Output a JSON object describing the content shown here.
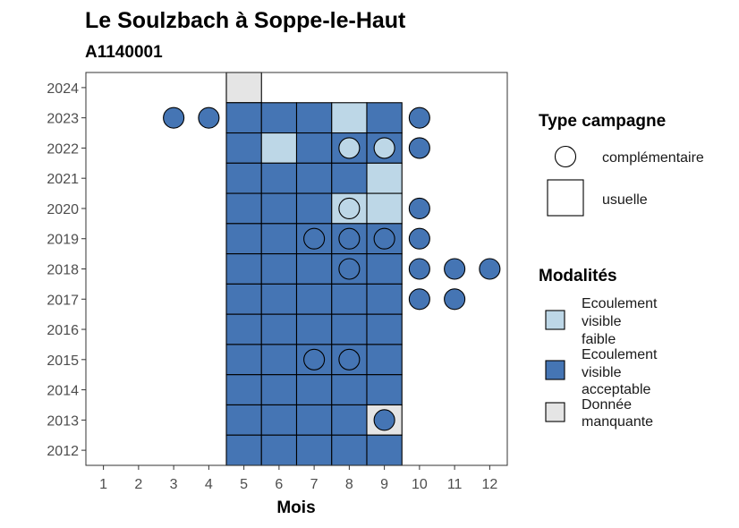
{
  "chart_data": {
    "type": "heatmap",
    "title": "Le Soulzbach à Soppe-le-Haut",
    "subtitle": "A1140001",
    "xlabel": "Mois",
    "ylabel": "",
    "x_ticks": [
      "1",
      "2",
      "3",
      "4",
      "5",
      "6",
      "7",
      "8",
      "9",
      "10",
      "11",
      "12"
    ],
    "y_ticks": [
      "2012",
      "2013",
      "2014",
      "2015",
      "2016",
      "2017",
      "2018",
      "2019",
      "2020",
      "2021",
      "2022",
      "2023",
      "2024"
    ],
    "xlim": [
      0.5,
      12.5
    ],
    "ylim": [
      2011.5,
      2024.5
    ],
    "grid": false,
    "legend_position": "right",
    "colors": {
      "faible": "#bdd7e7",
      "acceptable": "#4575b4",
      "manquante": "#e5e5e5",
      "stroke": "#000000",
      "panel_border": "#333333"
    },
    "legend_type": {
      "title": "Type campagne",
      "items": [
        {
          "key": "complementaire",
          "label": "complémentaire",
          "shape": "circle"
        },
        {
          "key": "usuelle",
          "label": "usuelle",
          "shape": "square"
        }
      ]
    },
    "legend_modalites": {
      "title": "Modalités",
      "items": [
        {
          "key": "faible",
          "lines": [
            "Ecoulement",
            "visible",
            "faible"
          ]
        },
        {
          "key": "acceptable",
          "lines": [
            "Ecoulement",
            "visible",
            "acceptable"
          ]
        },
        {
          "key": "manquante",
          "lines": [
            "Donnée",
            "manquante"
          ]
        }
      ]
    },
    "points": [
      {
        "year": 2024,
        "month": 5,
        "type": "usuelle",
        "modalite": "manquante"
      },
      {
        "year": 2023,
        "month": 3,
        "type": "complementaire",
        "modalite": "acceptable"
      },
      {
        "year": 2023,
        "month": 4,
        "type": "complementaire",
        "modalite": "acceptable"
      },
      {
        "year": 2023,
        "month": 5,
        "type": "usuelle",
        "modalite": "acceptable"
      },
      {
        "year": 2023,
        "month": 6,
        "type": "usuelle",
        "modalite": "acceptable"
      },
      {
        "year": 2023,
        "month": 7,
        "type": "usuelle",
        "modalite": "acceptable"
      },
      {
        "year": 2023,
        "month": 8,
        "type": "usuelle",
        "modalite": "faible"
      },
      {
        "year": 2023,
        "month": 9,
        "type": "usuelle",
        "modalite": "acceptable"
      },
      {
        "year": 2023,
        "month": 10,
        "type": "complementaire",
        "modalite": "acceptable"
      },
      {
        "year": 2022,
        "month": 5,
        "type": "usuelle",
        "modalite": "acceptable"
      },
      {
        "year": 2022,
        "month": 6,
        "type": "usuelle",
        "modalite": "faible"
      },
      {
        "year": 2022,
        "month": 7,
        "type": "usuelle",
        "modalite": "acceptable"
      },
      {
        "year": 2022,
        "month": 8,
        "type": "usuelle",
        "modalite": "acceptable"
      },
      {
        "year": 2022,
        "month": 9,
        "type": "usuelle",
        "modalite": "acceptable"
      },
      {
        "year": 2022,
        "month": 8,
        "type": "complementaire",
        "modalite": "faible"
      },
      {
        "year": 2022,
        "month": 9,
        "type": "complementaire",
        "modalite": "faible"
      },
      {
        "year": 2022,
        "month": 10,
        "type": "complementaire",
        "modalite": "acceptable"
      },
      {
        "year": 2021,
        "month": 5,
        "type": "usuelle",
        "modalite": "acceptable"
      },
      {
        "year": 2021,
        "month": 6,
        "type": "usuelle",
        "modalite": "acceptable"
      },
      {
        "year": 2021,
        "month": 7,
        "type": "usuelle",
        "modalite": "acceptable"
      },
      {
        "year": 2021,
        "month": 8,
        "type": "usuelle",
        "modalite": "acceptable"
      },
      {
        "year": 2021,
        "month": 9,
        "type": "usuelle",
        "modalite": "faible"
      },
      {
        "year": 2020,
        "month": 5,
        "type": "usuelle",
        "modalite": "acceptable"
      },
      {
        "year": 2020,
        "month": 6,
        "type": "usuelle",
        "modalite": "acceptable"
      },
      {
        "year": 2020,
        "month": 7,
        "type": "usuelle",
        "modalite": "acceptable"
      },
      {
        "year": 2020,
        "month": 8,
        "type": "usuelle",
        "modalite": "faible"
      },
      {
        "year": 2020,
        "month": 9,
        "type": "usuelle",
        "modalite": "faible"
      },
      {
        "year": 2020,
        "month": 8,
        "type": "complementaire",
        "modalite": "faible"
      },
      {
        "year": 2020,
        "month": 10,
        "type": "complementaire",
        "modalite": "acceptable"
      },
      {
        "year": 2019,
        "month": 5,
        "type": "usuelle",
        "modalite": "acceptable"
      },
      {
        "year": 2019,
        "month": 6,
        "type": "usuelle",
        "modalite": "acceptable"
      },
      {
        "year": 2019,
        "month": 7,
        "type": "usuelle",
        "modalite": "acceptable"
      },
      {
        "year": 2019,
        "month": 8,
        "type": "usuelle",
        "modalite": "acceptable"
      },
      {
        "year": 2019,
        "month": 9,
        "type": "usuelle",
        "modalite": "acceptable"
      },
      {
        "year": 2019,
        "month": 7,
        "type": "complementaire",
        "modalite": "acceptable"
      },
      {
        "year": 2019,
        "month": 8,
        "type": "complementaire",
        "modalite": "acceptable"
      },
      {
        "year": 2019,
        "month": 9,
        "type": "complementaire",
        "modalite": "acceptable"
      },
      {
        "year": 2019,
        "month": 10,
        "type": "complementaire",
        "modalite": "acceptable"
      },
      {
        "year": 2018,
        "month": 5,
        "type": "usuelle",
        "modalite": "acceptable"
      },
      {
        "year": 2018,
        "month": 6,
        "type": "usuelle",
        "modalite": "acceptable"
      },
      {
        "year": 2018,
        "month": 7,
        "type": "usuelle",
        "modalite": "acceptable"
      },
      {
        "year": 2018,
        "month": 8,
        "type": "usuelle",
        "modalite": "acceptable"
      },
      {
        "year": 2018,
        "month": 9,
        "type": "usuelle",
        "modalite": "acceptable"
      },
      {
        "year": 2018,
        "month": 8,
        "type": "complementaire",
        "modalite": "acceptable"
      },
      {
        "year": 2018,
        "month": 10,
        "type": "complementaire",
        "modalite": "acceptable"
      },
      {
        "year": 2018,
        "month": 11,
        "type": "complementaire",
        "modalite": "acceptable"
      },
      {
        "year": 2018,
        "month": 12,
        "type": "complementaire",
        "modalite": "acceptable"
      },
      {
        "year": 2017,
        "month": 5,
        "type": "usuelle",
        "modalite": "acceptable"
      },
      {
        "year": 2017,
        "month": 6,
        "type": "usuelle",
        "modalite": "acceptable"
      },
      {
        "year": 2017,
        "month": 7,
        "type": "usuelle",
        "modalite": "acceptable"
      },
      {
        "year": 2017,
        "month": 8,
        "type": "usuelle",
        "modalite": "acceptable"
      },
      {
        "year": 2017,
        "month": 9,
        "type": "usuelle",
        "modalite": "acceptable"
      },
      {
        "year": 2017,
        "month": 10,
        "type": "complementaire",
        "modalite": "acceptable"
      },
      {
        "year": 2017,
        "month": 11,
        "type": "complementaire",
        "modalite": "acceptable"
      },
      {
        "year": 2016,
        "month": 5,
        "type": "usuelle",
        "modalite": "acceptable"
      },
      {
        "year": 2016,
        "month": 6,
        "type": "usuelle",
        "modalite": "acceptable"
      },
      {
        "year": 2016,
        "month": 7,
        "type": "usuelle",
        "modalite": "acceptable"
      },
      {
        "year": 2016,
        "month": 8,
        "type": "usuelle",
        "modalite": "acceptable"
      },
      {
        "year": 2016,
        "month": 9,
        "type": "usuelle",
        "modalite": "acceptable"
      },
      {
        "year": 2015,
        "month": 5,
        "type": "usuelle",
        "modalite": "acceptable"
      },
      {
        "year": 2015,
        "month": 6,
        "type": "usuelle",
        "modalite": "acceptable"
      },
      {
        "year": 2015,
        "month": 7,
        "type": "usuelle",
        "modalite": "acceptable"
      },
      {
        "year": 2015,
        "month": 8,
        "type": "usuelle",
        "modalite": "acceptable"
      },
      {
        "year": 2015,
        "month": 9,
        "type": "usuelle",
        "modalite": "acceptable"
      },
      {
        "year": 2015,
        "month": 7,
        "type": "complementaire",
        "modalite": "acceptable"
      },
      {
        "year": 2015,
        "month": 8,
        "type": "complementaire",
        "modalite": "acceptable"
      },
      {
        "year": 2014,
        "month": 5,
        "type": "usuelle",
        "modalite": "acceptable"
      },
      {
        "year": 2014,
        "month": 6,
        "type": "usuelle",
        "modalite": "acceptable"
      },
      {
        "year": 2014,
        "month": 7,
        "type": "usuelle",
        "modalite": "acceptable"
      },
      {
        "year": 2014,
        "month": 8,
        "type": "usuelle",
        "modalite": "acceptable"
      },
      {
        "year": 2014,
        "month": 9,
        "type": "usuelle",
        "modalite": "acceptable"
      },
      {
        "year": 2013,
        "month": 5,
        "type": "usuelle",
        "modalite": "acceptable"
      },
      {
        "year": 2013,
        "month": 6,
        "type": "usuelle",
        "modalite": "acceptable"
      },
      {
        "year": 2013,
        "month": 7,
        "type": "usuelle",
        "modalite": "acceptable"
      },
      {
        "year": 2013,
        "month": 8,
        "type": "usuelle",
        "modalite": "acceptable"
      },
      {
        "year": 2013,
        "month": 9,
        "type": "usuelle",
        "modalite": "manquante"
      },
      {
        "year": 2013,
        "month": 9,
        "type": "complementaire",
        "modalite": "acceptable"
      },
      {
        "year": 2012,
        "month": 5,
        "type": "usuelle",
        "modalite": "acceptable"
      },
      {
        "year": 2012,
        "month": 6,
        "type": "usuelle",
        "modalite": "acceptable"
      },
      {
        "year": 2012,
        "month": 7,
        "type": "usuelle",
        "modalite": "acceptable"
      },
      {
        "year": 2012,
        "month": 8,
        "type": "usuelle",
        "modalite": "acceptable"
      },
      {
        "year": 2012,
        "month": 9,
        "type": "usuelle",
        "modalite": "acceptable"
      }
    ]
  }
}
